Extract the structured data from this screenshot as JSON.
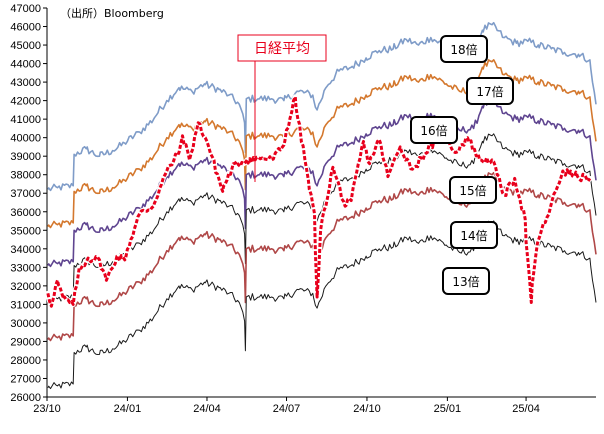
{
  "source_note": "（出所）Bloomberg",
  "chart_data": {
    "type": "line",
    "title": "日経平均",
    "xlabel": "",
    "ylabel": "",
    "x_range": [
      "2023-10-01",
      "2025-06-20"
    ],
    "x_ticks": [
      {
        "date": "2023-10-01",
        "label": "23/10"
      },
      {
        "date": "2024-01-01",
        "label": "24/01"
      },
      {
        "date": "2024-04-01",
        "label": "24/04"
      },
      {
        "date": "2024-07-01",
        "label": "24/07"
      },
      {
        "date": "2024-10-01",
        "label": "24/10"
      },
      {
        "date": "2025-01-01",
        "label": "25/01"
      },
      {
        "date": "2025-04-01",
        "label": "25/04"
      }
    ],
    "ylim": [
      26000,
      47000
    ],
    "y_ticks": [
      26000,
      27000,
      28000,
      29000,
      30000,
      31000,
      32000,
      33000,
      34000,
      35000,
      36000,
      37000,
      38000,
      39000,
      40000,
      41000,
      42000,
      43000,
      44000,
      45000,
      46000,
      47000
    ],
    "grid": false,
    "legend": "none",
    "nikkei_points": [
      [
        "2023-10-02",
        31600
      ],
      [
        "2023-10-06",
        30900
      ],
      [
        "2023-10-13",
        32300
      ],
      [
        "2023-10-20",
        31300
      ],
      [
        "2023-10-31",
        31000
      ],
      [
        "2023-11-06",
        32700
      ],
      [
        "2023-11-17",
        33500
      ],
      [
        "2023-11-30",
        33400
      ],
      [
        "2023-12-08",
        32300
      ],
      [
        "2023-12-20",
        33600
      ],
      [
        "2023-12-29",
        33400
      ],
      [
        "2024-01-15",
        35900
      ],
      [
        "2024-01-31",
        36300
      ],
      [
        "2024-02-15",
        38200
      ],
      [
        "2024-02-29",
        39200
      ],
      [
        "2024-03-04",
        40100
      ],
      [
        "2024-03-12",
        38800
      ],
      [
        "2024-03-22",
        40800
      ],
      [
        "2024-04-01",
        39800
      ],
      [
        "2024-04-19",
        37100
      ],
      [
        "2024-04-30",
        38400
      ],
      [
        "2024-05-17",
        38800
      ],
      [
        "2024-06-03",
        38900
      ],
      [
        "2024-06-14",
        38800
      ],
      [
        "2024-06-28",
        39600
      ],
      [
        "2024-07-11",
        42200
      ],
      [
        "2024-07-26",
        37700
      ],
      [
        "2024-08-02",
        35900
      ],
      [
        "2024-08-05",
        31400
      ],
      [
        "2024-08-09",
        35000
      ],
      [
        "2024-08-23",
        38400
      ],
      [
        "2024-09-06",
        36300
      ],
      [
        "2024-09-13",
        36600
      ],
      [
        "2024-09-27",
        39800
      ],
      [
        "2024-10-04",
        38600
      ],
      [
        "2024-10-15",
        39900
      ],
      [
        "2024-10-25",
        37900
      ],
      [
        "2024-11-08",
        39500
      ],
      [
        "2024-11-22",
        38300
      ],
      [
        "2024-12-06",
        39100
      ],
      [
        "2024-12-27",
        40300
      ],
      [
        "2025-01-10",
        39200
      ],
      [
        "2025-01-24",
        40000
      ],
      [
        "2025-02-07",
        38800
      ],
      [
        "2025-02-21",
        38800
      ],
      [
        "2025-03-07",
        36900
      ],
      [
        "2025-03-19",
        37800
      ],
      [
        "2025-03-31",
        35600
      ],
      [
        "2025-04-07",
        31100
      ],
      [
        "2025-04-14",
        34300
      ],
      [
        "2025-04-25",
        35700
      ],
      [
        "2025-05-13",
        38200
      ],
      [
        "2025-05-30",
        37900
      ],
      [
        "2025-06-13",
        37800
      ]
    ],
    "series": [
      {
        "name": "18倍",
        "color": "#7f9cc8",
        "offset": 5400
      },
      {
        "name": "17倍",
        "color": "#d4782e",
        "offset": 3400
      },
      {
        "name": "16倍",
        "color": "#5f4590",
        "offset": 1300
      },
      {
        "name": "15倍",
        "color": "#1a1a1a",
        "offset": -600
      },
      {
        "name": "14倍",
        "color": "#b04848",
        "offset": -2700
      },
      {
        "name": "13倍",
        "color": "#1a1a1a",
        "offset": -5300
      }
    ],
    "per_base_points": [
      [
        "2023-10-02",
        37200
      ],
      [
        "2023-10-13",
        37300
      ],
      [
        "2023-10-31",
        37400
      ],
      [
        "2023-11-01",
        39100
      ],
      [
        "2023-11-15",
        39400
      ],
      [
        "2023-11-30",
        39000
      ],
      [
        "2023-12-15",
        39300
      ],
      [
        "2023-12-29",
        39700
      ],
      [
        "2024-01-15",
        40300
      ],
      [
        "2024-01-31",
        41000
      ],
      [
        "2024-02-15",
        42000
      ],
      [
        "2024-02-29",
        42700
      ],
      [
        "2024-03-15",
        42500
      ],
      [
        "2024-03-29",
        42900
      ],
      [
        "2024-04-15",
        42600
      ],
      [
        "2024-04-26",
        42300
      ],
      [
        "2024-05-08",
        41800
      ],
      [
        "2024-05-14",
        40800
      ],
      [
        "2024-05-15",
        39200
      ],
      [
        "2024-05-16",
        42100
      ],
      [
        "2024-05-31",
        42100
      ],
      [
        "2024-06-14",
        42100
      ],
      [
        "2024-06-28",
        42000
      ],
      [
        "2024-07-15",
        42500
      ],
      [
        "2024-07-31",
        42300
      ],
      [
        "2024-08-05",
        41500
      ],
      [
        "2024-08-15",
        42700
      ],
      [
        "2024-08-30",
        43600
      ],
      [
        "2024-09-13",
        43800
      ],
      [
        "2024-09-30",
        44300
      ],
      [
        "2024-10-15",
        44700
      ],
      [
        "2024-10-31",
        44800
      ],
      [
        "2024-11-15",
        45300
      ],
      [
        "2024-11-29",
        45000
      ],
      [
        "2024-12-13",
        45400
      ],
      [
        "2024-12-31",
        44900
      ],
      [
        "2025-01-15",
        44500
      ],
      [
        "2025-01-31",
        44600
      ],
      [
        "2025-02-10",
        45800
      ],
      [
        "2025-02-21",
        46100
      ],
      [
        "2025-03-07",
        45400
      ],
      [
        "2025-03-21",
        45100
      ],
      [
        "2025-04-03",
        45200
      ],
      [
        "2025-04-15",
        45000
      ],
      [
        "2025-04-30",
        44800
      ],
      [
        "2025-05-15",
        44600
      ],
      [
        "2025-05-31",
        44500
      ],
      [
        "2025-06-13",
        44200
      ],
      [
        "2025-06-20",
        41800
      ]
    ],
    "annotations": [
      {
        "label": "18倍",
        "series": "18倍"
      },
      {
        "label": "17倍",
        "series": "17倍"
      },
      {
        "label": "16倍",
        "series": "16倍"
      },
      {
        "label": "15倍",
        "series": "15倍"
      },
      {
        "label": "14倍",
        "series": "14倍"
      },
      {
        "label": "13倍",
        "series": "13倍"
      }
    ],
    "colors": {
      "nikkei": "#e8001c",
      "axis": "#000000"
    }
  }
}
